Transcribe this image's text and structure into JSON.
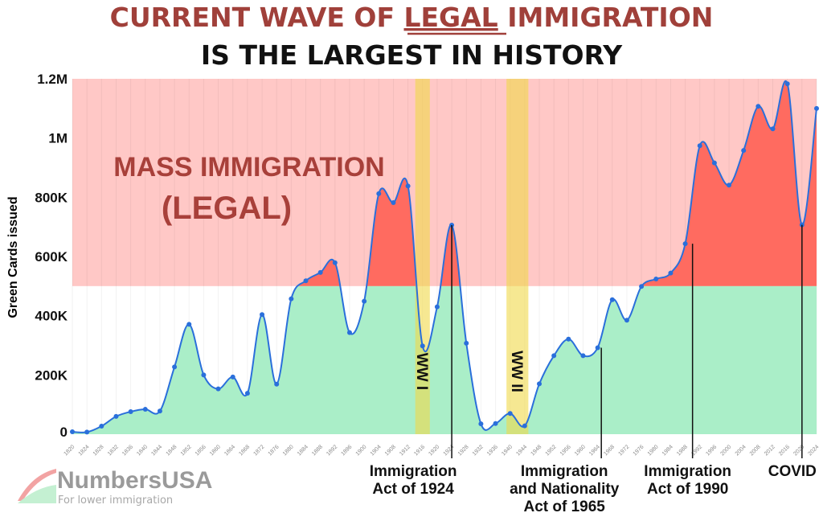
{
  "title_line1_a": "CURRENT WAVE OF ",
  "title_line1_b": "LEGAL",
  "title_line1_c": " IMMIGRATION",
  "title_line2": "IS THE LARGEST IN HISTORY",
  "colors": {
    "title_red": "#a0403a",
    "mass_bg": "#ffc8c6",
    "mass_fill": "#ff6b60",
    "normal_fill": "#aaeec8",
    "line": "#2a6fdb",
    "war_band": "#f0d84a"
  },
  "logo": {
    "name": "NumbersUSA",
    "tagline": "For lower immigration"
  },
  "chart_data": {
    "type": "area",
    "title": "",
    "xlabel": "",
    "ylabel": "Green Cards issued",
    "ylim": [
      0,
      1200000
    ],
    "yticks": [
      {
        "v": 0,
        "label": "0"
      },
      {
        "v": 200000,
        "label": "200K"
      },
      {
        "v": 400000,
        "label": "400K"
      },
      {
        "v": 600000,
        "label": "600K"
      },
      {
        "v": 800000,
        "label": "800K"
      },
      {
        "v": 1000000,
        "label": "1M"
      },
      {
        "v": 1200000,
        "label": "1.2M"
      }
    ],
    "xlim": [
      1820,
      2024
    ],
    "grid": true,
    "threshold": 500000,
    "zone_label_line1": "MASS IMMIGRATION",
    "zone_label_line2": "(LEGAL)",
    "x": [
      1820,
      1824,
      1828,
      1832,
      1836,
      1840,
      1844,
      1848,
      1852,
      1856,
      1860,
      1864,
      1868,
      1872,
      1876,
      1880,
      1884,
      1888,
      1892,
      1896,
      1900,
      1904,
      1908,
      1912,
      1916,
      1920,
      1924,
      1928,
      1932,
      1936,
      1940,
      1944,
      1948,
      1952,
      1956,
      1960,
      1964,
      1968,
      1972,
      1976,
      1980,
      1984,
      1988,
      1992,
      1996,
      2000,
      2004,
      2008,
      2012,
      2016,
      2020,
      2024
    ],
    "values": [
      8000,
      7000,
      27000,
      60000,
      76000,
      84000,
      78000,
      227000,
      371000,
      200000,
      153000,
      193000,
      138000,
      404000,
      169000,
      457000,
      518000,
      546000,
      579000,
      343000,
      449000,
      812000,
      782000,
      838000,
      298000,
      430000,
      706000,
      307000,
      35000,
      36000,
      70000,
      28000,
      170000,
      265000,
      321000,
      265000,
      292000,
      454000,
      385000,
      499000,
      524000,
      544000,
      643000,
      974000,
      916000,
      841000,
      958000,
      1107000,
      1031000,
      1183000,
      707000,
      1100000
    ],
    "bands": [
      {
        "label": "WW I",
        "from": 1914,
        "to": 1918
      },
      {
        "label": "WW II",
        "from": 1939,
        "to": 1945
      }
    ],
    "annotations": [
      {
        "year": 1924,
        "line1": "Immigration",
        "line2": "Act of 1924",
        "line3": ""
      },
      {
        "year": 1965,
        "line1": "Immigration",
        "line2": "and Nationality",
        "line3": "Act of 1965"
      },
      {
        "year": 1990,
        "line1": "Immigration",
        "line2": "Act of 1990",
        "line3": ""
      },
      {
        "year": 2020,
        "line1": "COVID",
        "line2": "",
        "line3": ""
      }
    ]
  }
}
